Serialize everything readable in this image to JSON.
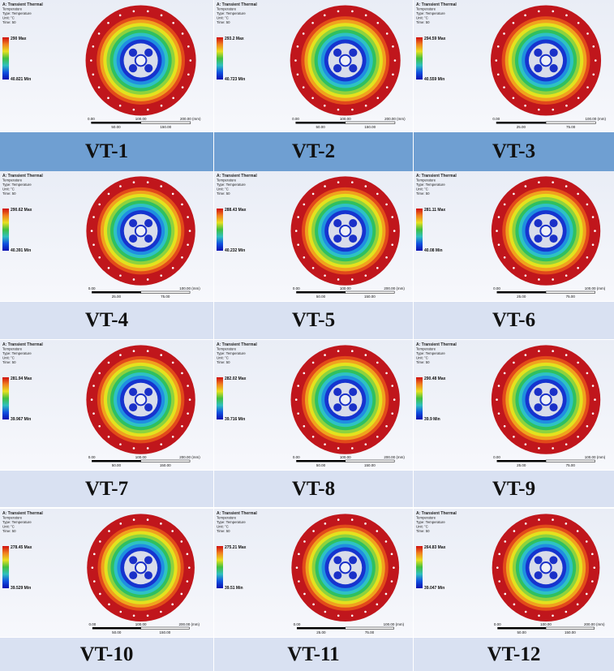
{
  "legend_header": [
    "A: Transient Thermal",
    "Temperature",
    "Type: Temperature",
    "Unit: °C",
    "Time: 50"
  ],
  "panels": [
    {
      "label": "VT-1",
      "max": "290 Max",
      "min": "40.821 Min",
      "scale": [
        "0.00",
        "100.00",
        "200.00 (mm)",
        "50.00",
        "150.00"
      ]
    },
    {
      "label": "VT-2",
      "max": "293.2 Max",
      "min": "40.723 Min",
      "scale": [
        "0.00",
        "100.00",
        "200.00 (mm)",
        "50.00",
        "150.00"
      ]
    },
    {
      "label": "VT-3",
      "max": "294.59 Max",
      "min": "40.559 Min",
      "scale": [
        "0.00",
        "100.00 (mm)",
        "25.00",
        "75.00"
      ]
    },
    {
      "label": "VT-4",
      "max": "290.62 Max",
      "min": "40.391 Min",
      "scale": [
        "0.00",
        "100.00 (mm)",
        "25.00",
        "75.00"
      ]
    },
    {
      "label": "VT-5",
      "max": "288.43 Max",
      "min": "40.232 Min",
      "scale": [
        "0.00",
        "100.00",
        "200.00 (mm)",
        "50.00",
        "150.00"
      ]
    },
    {
      "label": "VT-6",
      "max": "281.11 Max",
      "min": "40.08 Min",
      "scale": [
        "0.00",
        "100.00 (mm)",
        "25.00",
        "75.00"
      ]
    },
    {
      "label": "VT-7",
      "max": "281.94 Max",
      "min": "39.967 Min",
      "scale": [
        "0.00",
        "100.00",
        "200.00 (mm)",
        "50.00",
        "150.00"
      ]
    },
    {
      "label": "VT-8",
      "max": "282.02 Max",
      "min": "39.716 Min",
      "scale": [
        "0.00",
        "100.00",
        "200.00 (mm)",
        "50.00",
        "150.00"
      ]
    },
    {
      "label": "VT-9",
      "max": "290.48 Max",
      "min": "39.9 Min",
      "scale": [
        "0.00",
        "100.00 (mm)",
        "25.00",
        "75.00"
      ]
    },
    {
      "label": "VT-10",
      "max": "278.45 Max",
      "min": "39.529 Min",
      "scale": [
        "0.00",
        "100.00",
        "200.00 (mm)",
        "50.00",
        "150.00"
      ]
    },
    {
      "label": "VT-11",
      "max": "275.21 Max",
      "min": "39.51 Min",
      "scale": [
        "0.00",
        "100.00 (mm)",
        "25.00",
        "75.00"
      ]
    },
    {
      "label": "VT-12",
      "max": "264.83 Max",
      "min": "39.047 Min",
      "scale": [
        "0.00",
        "100.00",
        "200.00 (mm)",
        "50.00",
        "150.00"
      ]
    }
  ]
}
